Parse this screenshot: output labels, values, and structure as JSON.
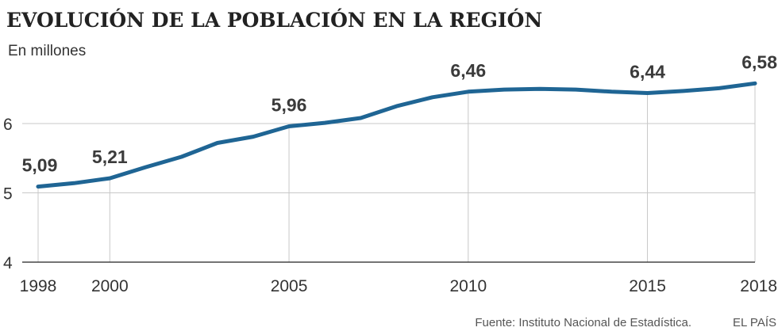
{
  "chart_data": {
    "type": "line",
    "title": "EVOLUCIÓN DE LA POBLACIÓN EN LA REGIÓN",
    "subtitle": "En millones",
    "xlabel": "",
    "ylabel": "",
    "xlim": [
      1998,
      2018
    ],
    "ylim": [
      4,
      6.7
    ],
    "yticks": [
      4,
      5,
      6
    ],
    "ytick_labels": [
      "4",
      "5",
      "6"
    ],
    "xticks": [
      1998,
      2000,
      2005,
      2010,
      2015,
      2018
    ],
    "xtick_labels": [
      "1998",
      "2000",
      "2005",
      "2010",
      "2015",
      "2018"
    ],
    "grid": true,
    "series": [
      {
        "name": "Población",
        "color": "#1f6594",
        "x": [
          1998,
          1999,
          2000,
          2001,
          2002,
          2003,
          2004,
          2005,
          2006,
          2007,
          2008,
          2009,
          2010,
          2011,
          2012,
          2013,
          2014,
          2015,
          2016,
          2017,
          2018
        ],
        "values": [
          5.09,
          5.14,
          5.21,
          5.37,
          5.52,
          5.72,
          5.81,
          5.96,
          6.01,
          6.08,
          6.25,
          6.38,
          6.46,
          6.49,
          6.5,
          6.49,
          6.46,
          6.44,
          6.47,
          6.51,
          6.58
        ]
      }
    ],
    "annotations": [
      {
        "x": 1998,
        "value": 5.09,
        "label": "5,09"
      },
      {
        "x": 2000,
        "value": 5.21,
        "label": "5,21"
      },
      {
        "x": 2005,
        "value": 5.96,
        "label": "5,96"
      },
      {
        "x": 2010,
        "value": 6.46,
        "label": "6,46"
      },
      {
        "x": 2015,
        "value": 6.44,
        "label": "6,44"
      },
      {
        "x": 2018,
        "value": 6.58,
        "label": "6,58"
      }
    ],
    "colors": {
      "line": "#1f6594",
      "grid": "#c8c8c8",
      "text": "#333333"
    }
  },
  "footer": {
    "source": "Fuente: Instituto Nacional de Estadística.",
    "brand": "EL PAÍS"
  }
}
